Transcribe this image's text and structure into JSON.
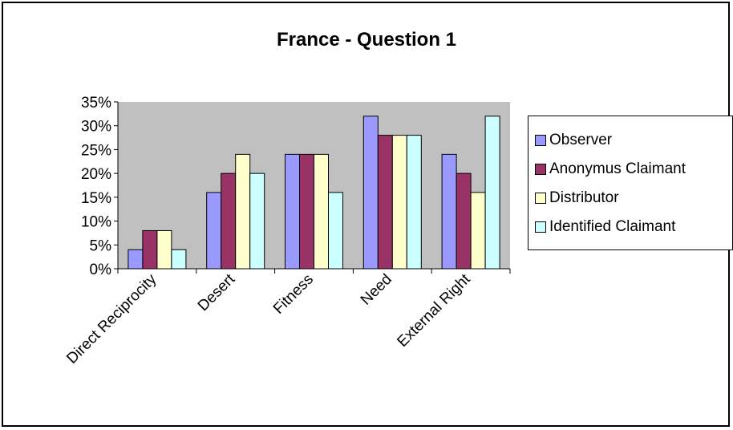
{
  "chart_data": {
    "type": "bar",
    "title": "France - Question 1",
    "categories": [
      "Direct Reciprocity",
      "Desert",
      "Fitness",
      "Need",
      "External Right"
    ],
    "series": [
      {
        "name": "Observer",
        "color": "#9999ff",
        "values": [
          4,
          16,
          24,
          32,
          24
        ]
      },
      {
        "name": "Anonymus Claimant",
        "color": "#993366",
        "values": [
          8,
          20,
          24,
          28,
          20
        ]
      },
      {
        "name": "Distributor",
        "color": "#ffffcc",
        "values": [
          8,
          24,
          24,
          28,
          16
        ]
      },
      {
        "name": "Identified Claimant",
        "color": "#ccffff",
        "values": [
          4,
          20,
          16,
          28,
          32
        ]
      }
    ],
    "y_ticks": [
      "0%",
      "5%",
      "10%",
      "15%",
      "20%",
      "25%",
      "30%",
      "35%"
    ],
    "ylim": [
      0,
      35
    ],
    "y_unit": "%",
    "plot_background": "#c0c0c0",
    "grid": false,
    "legend_position": "right"
  }
}
